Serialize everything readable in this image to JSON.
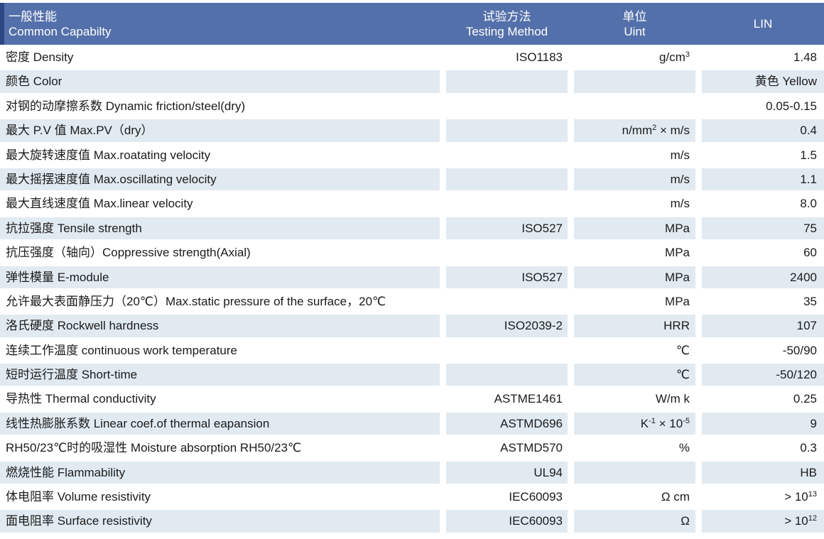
{
  "colors": {
    "header_bg": "#5470aa",
    "header_stripe": "#2c4783",
    "row_shade": "#e1eaf1",
    "text": "#1b1b1b"
  },
  "table": {
    "header": {
      "col1_zh": "一般性能",
      "col1_en": "Common Capabilty",
      "col2_zh": "试验方法",
      "col2_en": "Testing Method",
      "col3_zh": "单位",
      "col3_en": "Uint",
      "col4": "LIN"
    },
    "rows": [
      {
        "label": "密度 Density",
        "method": "ISO1183",
        "unit": [
          {
            "t": "g/cm"
          },
          {
            "t": "3",
            "sup": true
          }
        ],
        "value": "1.48"
      },
      {
        "label": "颜色 Color",
        "method": "",
        "unit": "",
        "value": "黄色 Yellow"
      },
      {
        "label": "对钢的动摩擦系数 Dynamic friction/steel(dry)",
        "method": "",
        "unit": "",
        "value": "0.05-0.15"
      },
      {
        "label": "最大 P.V 值 Max.PV（dry）",
        "method": "",
        "unit": [
          {
            "t": "n/mm"
          },
          {
            "t": "2",
            "sup": true
          },
          {
            "t": " × m/s"
          }
        ],
        "value": "0.4"
      },
      {
        "label": "最大旋转速度值 Max.roatating velocity",
        "method": "",
        "unit": "m/s",
        "value": "1.5"
      },
      {
        "label": "最大摇摆速度值 Max.oscillating velocity",
        "method": "",
        "unit": "m/s",
        "value": "1.1"
      },
      {
        "label": "最大直线速度值 Max.linear velocity",
        "method": "",
        "unit": "m/s",
        "value": "8.0"
      },
      {
        "label": "抗拉强度 Tensile strength",
        "method": "ISO527",
        "unit": "MPa",
        "value": "75"
      },
      {
        "label": "抗压强度（轴向）Coppressive strength(Axial)",
        "method": "",
        "unit": "MPa",
        "value": "60"
      },
      {
        "label": "弹性模量 E-module",
        "method": "ISO527",
        "unit": "MPa",
        "value": "2400"
      },
      {
        "label": "允许最大表面静压力（20℃）Max.static pressure of the surface，20℃",
        "method": "",
        "unit": "MPa",
        "value": "35"
      },
      {
        "label": "洛氏硬度 Rockwell hardness",
        "method": "ISO2039-2",
        "unit": "HRR",
        "value": "107"
      },
      {
        "label": "连续工作温度 continuous work temperature",
        "method": "",
        "unit": "℃",
        "value": "-50/90"
      },
      {
        "label": "短时运行温度 Short-time",
        "method": "",
        "unit": "℃",
        "value": "-50/120"
      },
      {
        "label": "导热性 Thermal conductivity",
        "method": "ASTME1461",
        "unit": "W/m k",
        "value": "0.25"
      },
      {
        "label": "线性热膨胀系数 Linear coef.of thermal eapansion",
        "method": "ASTMD696",
        "unit": [
          {
            "t": "K"
          },
          {
            "t": "-1",
            "sup": true
          },
          {
            "t": " × 10"
          },
          {
            "t": "-5",
            "sup": true
          }
        ],
        "value": "9"
      },
      {
        "label": "RH50/23℃时的吸湿性 Moisture absorption RH50/23℃",
        "method": "ASTMD570",
        "unit": "%",
        "value": "0.3"
      },
      {
        "label": "燃烧性能 Flammability",
        "method": "UL94",
        "unit": "",
        "value": "HB"
      },
      {
        "label": "体电阻率 Volume resistivity",
        "method": "IEC60093",
        "unit": "Ω cm",
        "value": [
          {
            "t": "> 10"
          },
          {
            "t": "13",
            "sup": true
          }
        ]
      },
      {
        "label": "面电阻率 Surface resistivity",
        "method": "IEC60093",
        "unit": "Ω",
        "value": [
          {
            "t": "> 10"
          },
          {
            "t": "12",
            "sup": true
          }
        ]
      }
    ]
  }
}
